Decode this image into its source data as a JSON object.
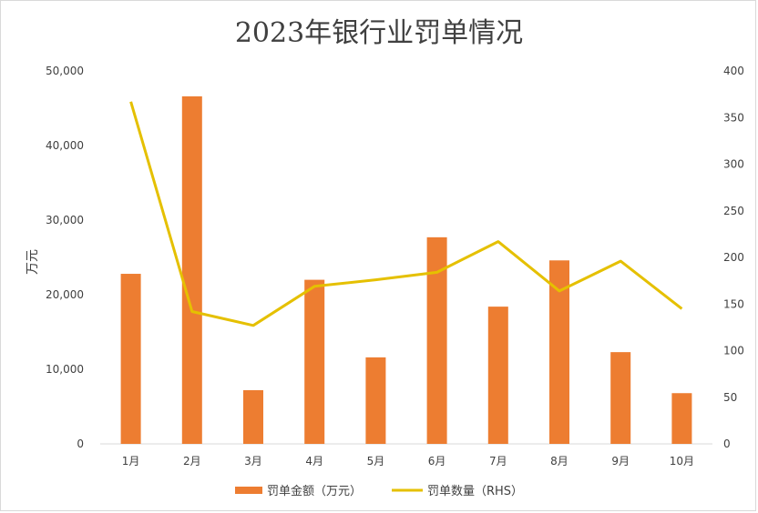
{
  "chart_data": {
    "type": "bar",
    "title": "2023年银行业罚单情况",
    "categories": [
      "1月",
      "2月",
      "3月",
      "4月",
      "5月",
      "6月",
      "7月",
      "8月",
      "9月",
      "10月"
    ],
    "ylabel": "万元",
    "xlabel": "",
    "ylim": [
      0,
      50000
    ],
    "y2lim": [
      0,
      400
    ],
    "left_ticks": [
      "0",
      "10,000",
      "20,000",
      "30,000",
      "40,000",
      "50,000"
    ],
    "left_tick_values": [
      0,
      10000,
      20000,
      30000,
      40000,
      50000
    ],
    "right_ticks": [
      "0",
      "50",
      "100",
      "150",
      "200",
      "250",
      "300",
      "350",
      "400"
    ],
    "right_tick_values": [
      0,
      50,
      100,
      150,
      200,
      250,
      300,
      350,
      400
    ],
    "legend_position": "bottom",
    "grid": false,
    "series": [
      {
        "name": "罚单金额（万元）",
        "type": "bar",
        "axis": "left",
        "color": "#ED7D31",
        "values": [
          22800,
          46600,
          7200,
          22000,
          11600,
          27700,
          18400,
          24600,
          12300,
          6800
        ]
      },
      {
        "name": "罚单数量（RHS）",
        "type": "line",
        "axis": "right",
        "color": "#E5C000",
        "values": [
          367,
          142,
          127,
          169,
          176,
          184,
          217,
          164,
          196,
          145
        ]
      }
    ]
  }
}
